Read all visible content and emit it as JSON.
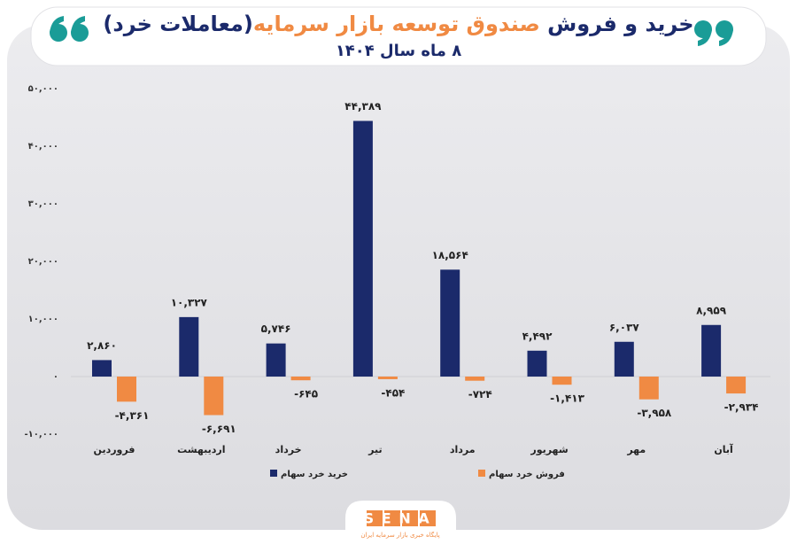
{
  "chart_data": {
    "type": "bar",
    "title": "خرید و فروش",
    "title_highlight": "صندوق توسعه بازار سرمایه",
    "title_end": "(معاملات خرد)",
    "subtitle": "۸ ماه سال ۱۴۰۴",
    "categories": [
      "فروردین",
      "اردیبهشت",
      "خرداد",
      "تیر",
      "مرداد",
      "شهریور",
      "مهر",
      "آبان"
    ],
    "series": [
      {
        "name": "خرید خرد سهام",
        "color": "#1b2a6b",
        "values": [
          2860,
          10327,
          5746,
          44389,
          18564,
          4492,
          6037,
          8959
        ],
        "value_labels": [
          "۲,۸۶۰",
          "۱۰,۳۲۷",
          "۵,۷۴۶",
          "۴۴,۳۸۹",
          "۱۸,۵۶۴",
          "۴,۴۹۲",
          "۶,۰۳۷",
          "۸,۹۵۹"
        ]
      },
      {
        "name": "فروش خرد سهام",
        "color": "#f08a43",
        "values": [
          -4361,
          -6691,
          -645,
          -454,
          -724,
          -1413,
          -3958,
          -2934
        ],
        "value_labels": [
          "-۴,۳۶۱",
          "-۶,۶۹۱",
          "-۶۴۵",
          "-۴۵۴",
          "-۷۲۴",
          "-۱,۴۱۳",
          "-۳,۹۵۸",
          "-۲,۹۳۴"
        ]
      }
    ],
    "ylim": [
      -10000,
      50000
    ],
    "yticks": [
      {
        "value": 50000,
        "label": "۵۰,۰۰۰"
      },
      {
        "value": 40000,
        "label": "۴۰,۰۰۰"
      },
      {
        "value": 30000,
        "label": "۳۰,۰۰۰"
      },
      {
        "value": 20000,
        "label": "۲۰,۰۰۰"
      },
      {
        "value": 10000,
        "label": "۱۰,۰۰۰"
      },
      {
        "value": 0,
        "label": "۰"
      },
      {
        "value": -10000,
        "label": "-۱۰,۰۰۰"
      }
    ],
    "grid": false,
    "legend": "bottom",
    "logo": "SENA",
    "logo_caption": "پایگاه خبری بازار سرمایه ایران"
  }
}
